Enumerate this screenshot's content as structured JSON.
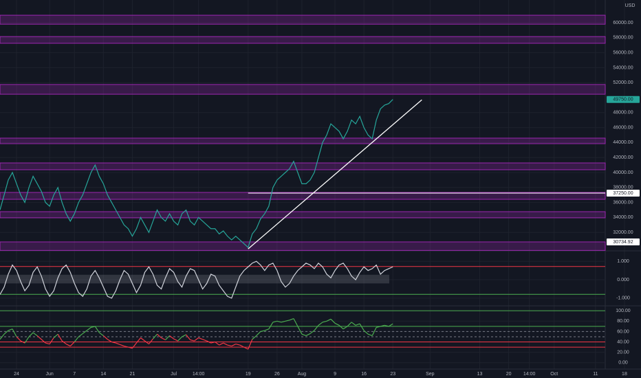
{
  "currency": "USD",
  "x_axis": {
    "xlim": [
      -4,
      151
    ],
    "xticks": [
      {
        "value": 0,
        "label": "24"
      },
      {
        "value": 8,
        "label": "Jun"
      },
      {
        "value": 14,
        "label": "7"
      },
      {
        "value": 21,
        "label": "14"
      },
      {
        "value": 28,
        "label": "21"
      },
      {
        "value": 38,
        "label": "Jul"
      },
      {
        "value": 44,
        "label": "14:00"
      },
      {
        "value": 56,
        "label": "19"
      },
      {
        "value": 63,
        "label": "26"
      },
      {
        "value": 69,
        "label": "Aug"
      },
      {
        "value": 77,
        "label": "9"
      },
      {
        "value": 84,
        "label": "16"
      },
      {
        "value": 91,
        "label": "23"
      },
      {
        "value": 100,
        "label": "Sep"
      },
      {
        "value": 112,
        "label": "13"
      },
      {
        "value": 119,
        "label": "20"
      },
      {
        "value": 124,
        "label": "14:00"
      },
      {
        "value": 130,
        "label": "Oct"
      },
      {
        "value": 140,
        "label": "11"
      },
      {
        "value": 147,
        "label": "18"
      }
    ],
    "x": [
      -4,
      -3,
      -2,
      -1,
      0,
      1,
      2,
      3,
      4,
      5,
      6,
      7,
      8,
      9,
      10,
      11,
      12,
      13,
      14,
      15,
      16,
      17,
      18,
      19,
      20,
      21,
      22,
      23,
      24,
      25,
      26,
      27,
      28,
      29,
      30,
      31,
      32,
      33,
      34,
      35,
      36,
      37,
      38,
      39,
      40,
      41,
      42,
      43,
      44,
      45,
      46,
      47,
      48,
      49,
      50,
      51,
      52,
      53,
      54,
      55,
      56,
      57,
      58,
      59,
      60,
      61,
      62,
      63,
      64,
      65,
      66,
      67,
      68,
      69,
      70,
      71,
      72,
      73,
      74,
      75,
      76,
      77,
      78,
      79,
      80,
      81,
      82,
      83,
      84,
      85,
      86,
      87,
      88,
      89,
      90,
      91
    ]
  },
  "chart_data": [
    {
      "type": "line",
      "ylim": [
        29540,
        63030
      ],
      "yticks": [
        {
          "value": 32000,
          "label": "32000.00"
        },
        {
          "value": 34000,
          "label": "34000.00"
        },
        {
          "value": 36000,
          "label": "36000.00"
        },
        {
          "value": 38000,
          "label": "38000.00"
        },
        {
          "value": 40000,
          "label": "40000.00"
        },
        {
          "value": 42000,
          "label": "42000.00"
        },
        {
          "value": 44000,
          "label": "44000.00"
        },
        {
          "value": 46000,
          "label": "46000.00"
        },
        {
          "value": 48000,
          "label": "48000.00"
        },
        {
          "value": 52000,
          "label": "52000.00"
        },
        {
          "value": 54000,
          "label": "54000.00"
        },
        {
          "value": 56000,
          "label": "56000.00"
        },
        {
          "value": 58000,
          "label": "58000.00"
        },
        {
          "value": 60000,
          "label": "60000.00"
        }
      ],
      "series": [
        {
          "color": "#26a69a",
          "values": [
            35000,
            37000,
            39000,
            40000,
            38500,
            37000,
            36000,
            38000,
            39500,
            38500,
            37500,
            36000,
            35500,
            37000,
            38000,
            36000,
            34500,
            33500,
            34500,
            36000,
            37000,
            38500,
            40000,
            41000,
            39500,
            38500,
            37000,
            36000,
            35000,
            34000,
            33000,
            32500,
            31500,
            32500,
            34000,
            33000,
            32000,
            33500,
            35000,
            34000,
            33500,
            34500,
            33500,
            33000,
            34500,
            35000,
            33500,
            33000,
            34000,
            33500,
            33000,
            32500,
            32500,
            31800,
            32200,
            31500,
            31000,
            31500,
            31000,
            30500,
            30000,
            31800,
            32500,
            33800,
            34500,
            35500,
            38000,
            39000,
            39500,
            40000,
            40500,
            41500,
            40000,
            38500,
            38500,
            39000,
            40000,
            42000,
            44000,
            45000,
            46500,
            46000,
            45500,
            44500,
            45500,
            47000,
            46500,
            47500,
            46000,
            45000,
            44500,
            47000,
            48500,
            49000,
            49200,
            49750
          ]
        }
      ],
      "zone_color": "#9c27b0",
      "zones": [
        [
          59800,
          61000
        ],
        [
          57250,
          58150
        ],
        [
          50450,
          51750
        ],
        [
          43850,
          44590
        ],
        [
          40370,
          41280
        ],
        [
          36420,
          37340
        ],
        [
          33950,
          34770
        ],
        [
          29600,
          30734
        ]
      ],
      "hlines": [
        {
          "value": 37250,
          "from": 56,
          "color": "#ffffff"
        }
      ],
      "trendline": {
        "x": [
          56,
          98
        ],
        "y": [
          29800,
          49700
        ],
        "color": "#ffffff"
      },
      "price_tags": [
        {
          "value": 49750,
          "label": "49750.00",
          "color": "#26a69a"
        },
        {
          "value": 37250,
          "label": "37250.00",
          "color": "#ffffff"
        },
        {
          "value": 30734.92,
          "label": "30734.92",
          "color": "#ffffff"
        }
      ]
    },
    {
      "type": "line",
      "ylim": [
        -1.415,
        1.566
      ],
      "yticks": [
        {
          "value": 1,
          "label": "1.000"
        },
        {
          "value": 0,
          "label": "0.000"
        },
        {
          "value": -1,
          "label": "-1.000"
        }
      ],
      "band": [
        -0.2,
        0.27
      ],
      "levels": [
        {
          "value": 0.72,
          "color": "#f23645"
        },
        {
          "value": -0.79,
          "color": "#4caf50"
        }
      ],
      "series": [
        {
          "color": "#d1d4dc",
          "values": [
            -0.8,
            -0.4,
            0.3,
            0.8,
            0.5,
            -0.1,
            -0.6,
            -0.3,
            0.4,
            0.7,
            0.2,
            -0.5,
            -0.9,
            -0.6,
            0.1,
            0.6,
            0.8,
            0.4,
            -0.2,
            -0.7,
            -0.9,
            -0.5,
            0.2,
            0.5,
            0.1,
            -0.4,
            -0.9,
            -1.0,
            -0.6,
            0.0,
            0.5,
            0.3,
            -0.2,
            -0.7,
            -0.3,
            0.4,
            0.7,
            0.3,
            -0.3,
            -0.5,
            0.1,
            0.6,
            0.4,
            -0.1,
            -0.4,
            0.2,
            0.6,
            0.5,
            0.0,
            -0.5,
            -0.2,
            0.3,
            0.2,
            -0.3,
            -0.6,
            -0.9,
            -1.0,
            -0.4,
            0.2,
            0.5,
            0.7,
            0.9,
            1.0,
            0.8,
            0.5,
            0.8,
            0.9,
            0.5,
            -0.1,
            -0.4,
            -0.2,
            0.2,
            0.5,
            0.7,
            0.9,
            0.8,
            0.6,
            0.9,
            0.7,
            0.3,
            0.1,
            0.5,
            0.8,
            0.9,
            0.6,
            0.2,
            0.0,
            0.4,
            0.7,
            0.5,
            0.6,
            0.8,
            0.3,
            0.5,
            0.6,
            0.7
          ]
        }
      ]
    },
    {
      "type": "line",
      "ylim": [
        -12.2,
        109.5
      ],
      "yticks": [
        {
          "value": 100,
          "label": "100.00"
        },
        {
          "value": 80,
          "label": "80.00"
        },
        {
          "value": 60,
          "label": "60.00"
        },
        {
          "value": 40,
          "label": "40.00"
        },
        {
          "value": 20,
          "label": "20.00"
        },
        {
          "value": 0,
          "label": "0.00"
        }
      ],
      "levels": [
        {
          "value": 100,
          "color": "#4caf50"
        },
        {
          "value": 70,
          "color": "#4caf50"
        },
        {
          "value": 60,
          "color": "#787b86",
          "dashed": true
        },
        {
          "value": 50,
          "color": "#787b86",
          "dashed": true
        },
        {
          "value": 40,
          "color": "#f23645"
        },
        {
          "value": 30,
          "color": "#f23645"
        }
      ],
      "threshold": 50,
      "series": [
        {
          "color": "#4caf50",
          "below_color": "#f23645",
          "values": [
            45,
            55,
            62,
            65,
            50,
            42,
            38,
            50,
            58,
            52,
            45,
            38,
            36,
            48,
            55,
            42,
            36,
            32,
            40,
            50,
            56,
            62,
            68,
            70,
            58,
            52,
            45,
            40,
            38,
            35,
            32,
            30,
            28,
            38,
            48,
            42,
            36,
            46,
            55,
            48,
            44,
            52,
            46,
            42,
            50,
            54,
            44,
            42,
            48,
            45,
            42,
            38,
            40,
            34,
            38,
            34,
            32,
            36,
            34,
            30,
            26,
            45,
            52,
            60,
            62,
            65,
            78,
            80,
            78,
            80,
            82,
            85,
            70,
            55,
            52,
            56,
            62,
            72,
            78,
            80,
            84,
            76,
            72,
            65,
            70,
            78,
            72,
            75,
            62,
            55,
            52,
            68,
            70,
            72,
            70,
            75
          ]
        }
      ]
    }
  ]
}
